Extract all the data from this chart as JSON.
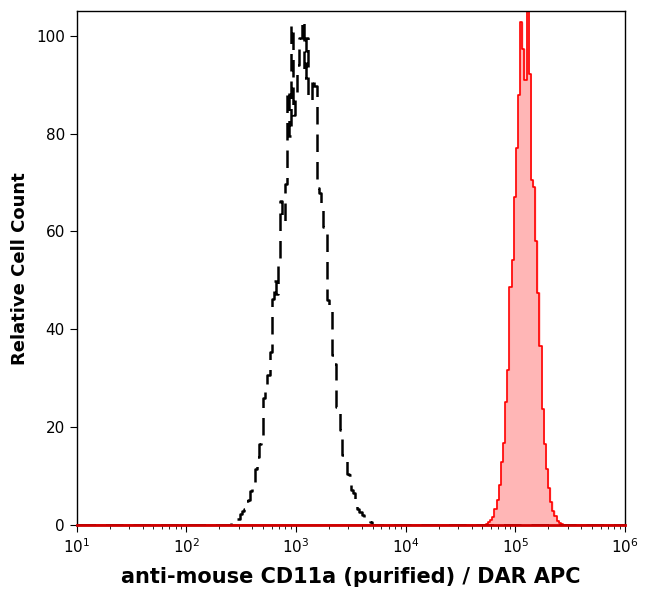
{
  "title": "",
  "xlabel": "anti-mouse CD11a (purified) / DAR APC",
  "ylabel": "Relative Cell Count",
  "xlim_log": [
    1,
    6
  ],
  "ylim": [
    0,
    105
  ],
  "yticks": [
    0,
    20,
    40,
    60,
    80,
    100
  ],
  "background_color": "#ffffff",
  "plot_bg_color": "#ffffff",
  "dashed_peak_log": 3.05,
  "dashed_peak_height": 100,
  "dashed_spread_log": 0.2,
  "solid_peak_log": 5.08,
  "solid_peak_height": 100,
  "solid_spread_log": 0.1,
  "dashed_color": "#000000",
  "solid_color": "#ff0000",
  "fill_color": "#ffaaaa",
  "xlabel_fontsize": 15,
  "ylabel_fontsize": 13,
  "tick_fontsize": 11,
  "xlabel_fontweight": "bold",
  "bottom_line_color": "#cc0000"
}
